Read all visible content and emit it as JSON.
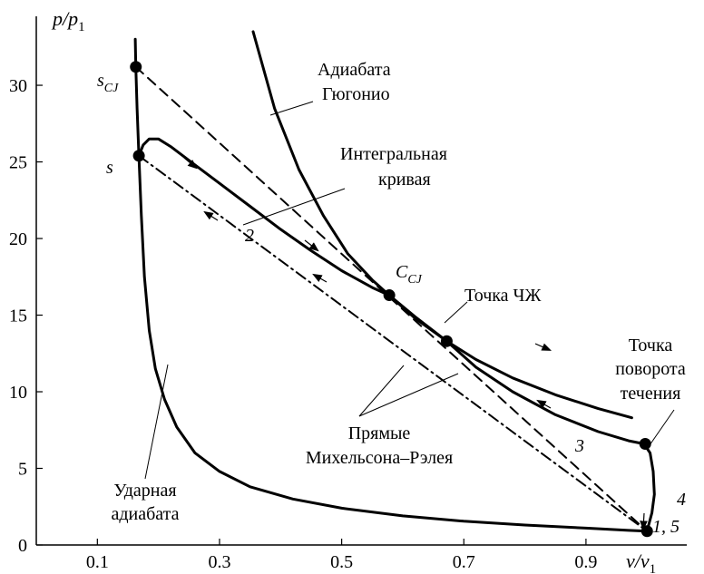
{
  "chart_data": {
    "type": "line",
    "xlabel": "v/v",
    "xlabel_sub": "1",
    "ylabel": "p/p",
    "ylabel_sub": "1",
    "xlim": [
      0,
      1.065
    ],
    "ylim": [
      0,
      34.5
    ],
    "x_ticks": [
      0.1,
      0.3,
      0.5,
      0.7,
      0.9
    ],
    "x_tick_labels": [
      "0.1",
      "0.3",
      "0.5",
      "0.7",
      "0.9"
    ],
    "y_ticks": [
      0,
      5,
      10,
      15,
      20,
      25,
      30
    ],
    "y_tick_labels": [
      "0",
      "5",
      "10",
      "15",
      "20",
      "25",
      "30"
    ],
    "series": [
      {
        "key": "shock-adiabat",
        "style": "solid",
        "points": [
          [
            0.162,
            33.0
          ],
          [
            0.163,
            31.2
          ],
          [
            0.165,
            28.5
          ],
          [
            0.168,
            25.4
          ],
          [
            0.172,
            21.5
          ],
          [
            0.177,
            17.5
          ],
          [
            0.185,
            14.0
          ],
          [
            0.195,
            11.5
          ],
          [
            0.21,
            9.5
          ],
          [
            0.23,
            7.7
          ],
          [
            0.26,
            6.0
          ],
          [
            0.3,
            4.8
          ],
          [
            0.35,
            3.8
          ],
          [
            0.42,
            3.0
          ],
          [
            0.5,
            2.4
          ],
          [
            0.6,
            1.9
          ],
          [
            0.7,
            1.55
          ],
          [
            0.8,
            1.3
          ],
          [
            0.9,
            1.1
          ],
          [
            0.97,
            0.95
          ],
          [
            1.0,
            0.9
          ]
        ]
      },
      {
        "key": "hugoniot-adiabat",
        "style": "solid",
        "points": [
          [
            0.355,
            33.5
          ],
          [
            0.39,
            28.5
          ],
          [
            0.43,
            24.5
          ],
          [
            0.47,
            21.5
          ],
          [
            0.51,
            19.0
          ],
          [
            0.55,
            17.3
          ],
          [
            0.578,
            16.3
          ],
          [
            0.62,
            14.9
          ],
          [
            0.672,
            13.3
          ],
          [
            0.72,
            12.1
          ],
          [
            0.78,
            10.9
          ],
          [
            0.85,
            9.8
          ],
          [
            0.92,
            8.9
          ],
          [
            0.975,
            8.3
          ]
        ]
      },
      {
        "key": "integral-curve",
        "style": "solid",
        "points": [
          [
            0.168,
            25.4
          ],
          [
            0.175,
            26.1
          ],
          [
            0.185,
            26.5
          ],
          [
            0.2,
            26.5
          ],
          [
            0.22,
            26.0
          ],
          [
            0.26,
            24.8
          ],
          [
            0.3,
            23.6
          ],
          [
            0.35,
            22.1
          ],
          [
            0.4,
            20.6
          ],
          [
            0.45,
            19.2
          ],
          [
            0.5,
            17.9
          ],
          [
            0.55,
            16.8
          ],
          [
            0.578,
            16.3
          ],
          [
            0.62,
            14.8
          ],
          [
            0.672,
            13.3
          ],
          [
            0.72,
            11.6
          ],
          [
            0.78,
            10.0
          ],
          [
            0.85,
            8.5
          ],
          [
            0.92,
            7.4
          ],
          [
            0.97,
            6.8
          ],
          [
            0.995,
            6.6
          ],
          [
            1.005,
            6.0
          ],
          [
            1.01,
            4.8
          ],
          [
            1.012,
            3.3
          ],
          [
            1.008,
            2.1
          ],
          [
            1.0,
            0.9
          ]
        ]
      },
      {
        "key": "rayleigh-line-cj",
        "style": "dashed",
        "points": [
          [
            0.163,
            31.2
          ],
          [
            1.0,
            0.9
          ]
        ]
      },
      {
        "key": "rayleigh-line-s",
        "style": "dashdot",
        "points": [
          [
            0.168,
            25.4
          ],
          [
            1.0,
            0.9
          ]
        ]
      }
    ],
    "points": [
      {
        "key": "s-cj",
        "x": 0.163,
        "y": 31.2,
        "label": "s",
        "label_sub": "CJ"
      },
      {
        "key": "s",
        "x": 0.168,
        "y": 25.4,
        "label": "s",
        "label_sub": ""
      },
      {
        "key": "c-cj",
        "x": 0.578,
        "y": 16.3,
        "label": "C",
        "label_sub": "CJ"
      },
      {
        "key": "cj-point",
        "x": 0.672,
        "y": 13.3,
        "label": "",
        "label_sub": ""
      },
      {
        "key": "turning-point",
        "x": 0.997,
        "y": 6.6,
        "label": "",
        "label_sub": ""
      },
      {
        "key": "point-1-5",
        "x": 1.0,
        "y": 0.9,
        "label": "",
        "label_sub": ""
      }
    ],
    "annotations": {
      "hugoniot_line1": "Адиабата",
      "hugoniot_line2": "Гюгонио",
      "integral_line1": "Интегральная",
      "integral_line2": "кривая",
      "cj_point": "Точка ЧЖ",
      "turning_line1": "Точка",
      "turning_line2": "поворота",
      "turning_line3": "течения",
      "rayleigh_line1": "Прямые",
      "rayleigh_line2": "Михельсона–Рэлея",
      "shock_line1": "Ударная",
      "shock_line2": "адиабата",
      "num_2": "2",
      "num_3": "3",
      "num_4": "4",
      "num_1_5": "1, 5"
    }
  }
}
